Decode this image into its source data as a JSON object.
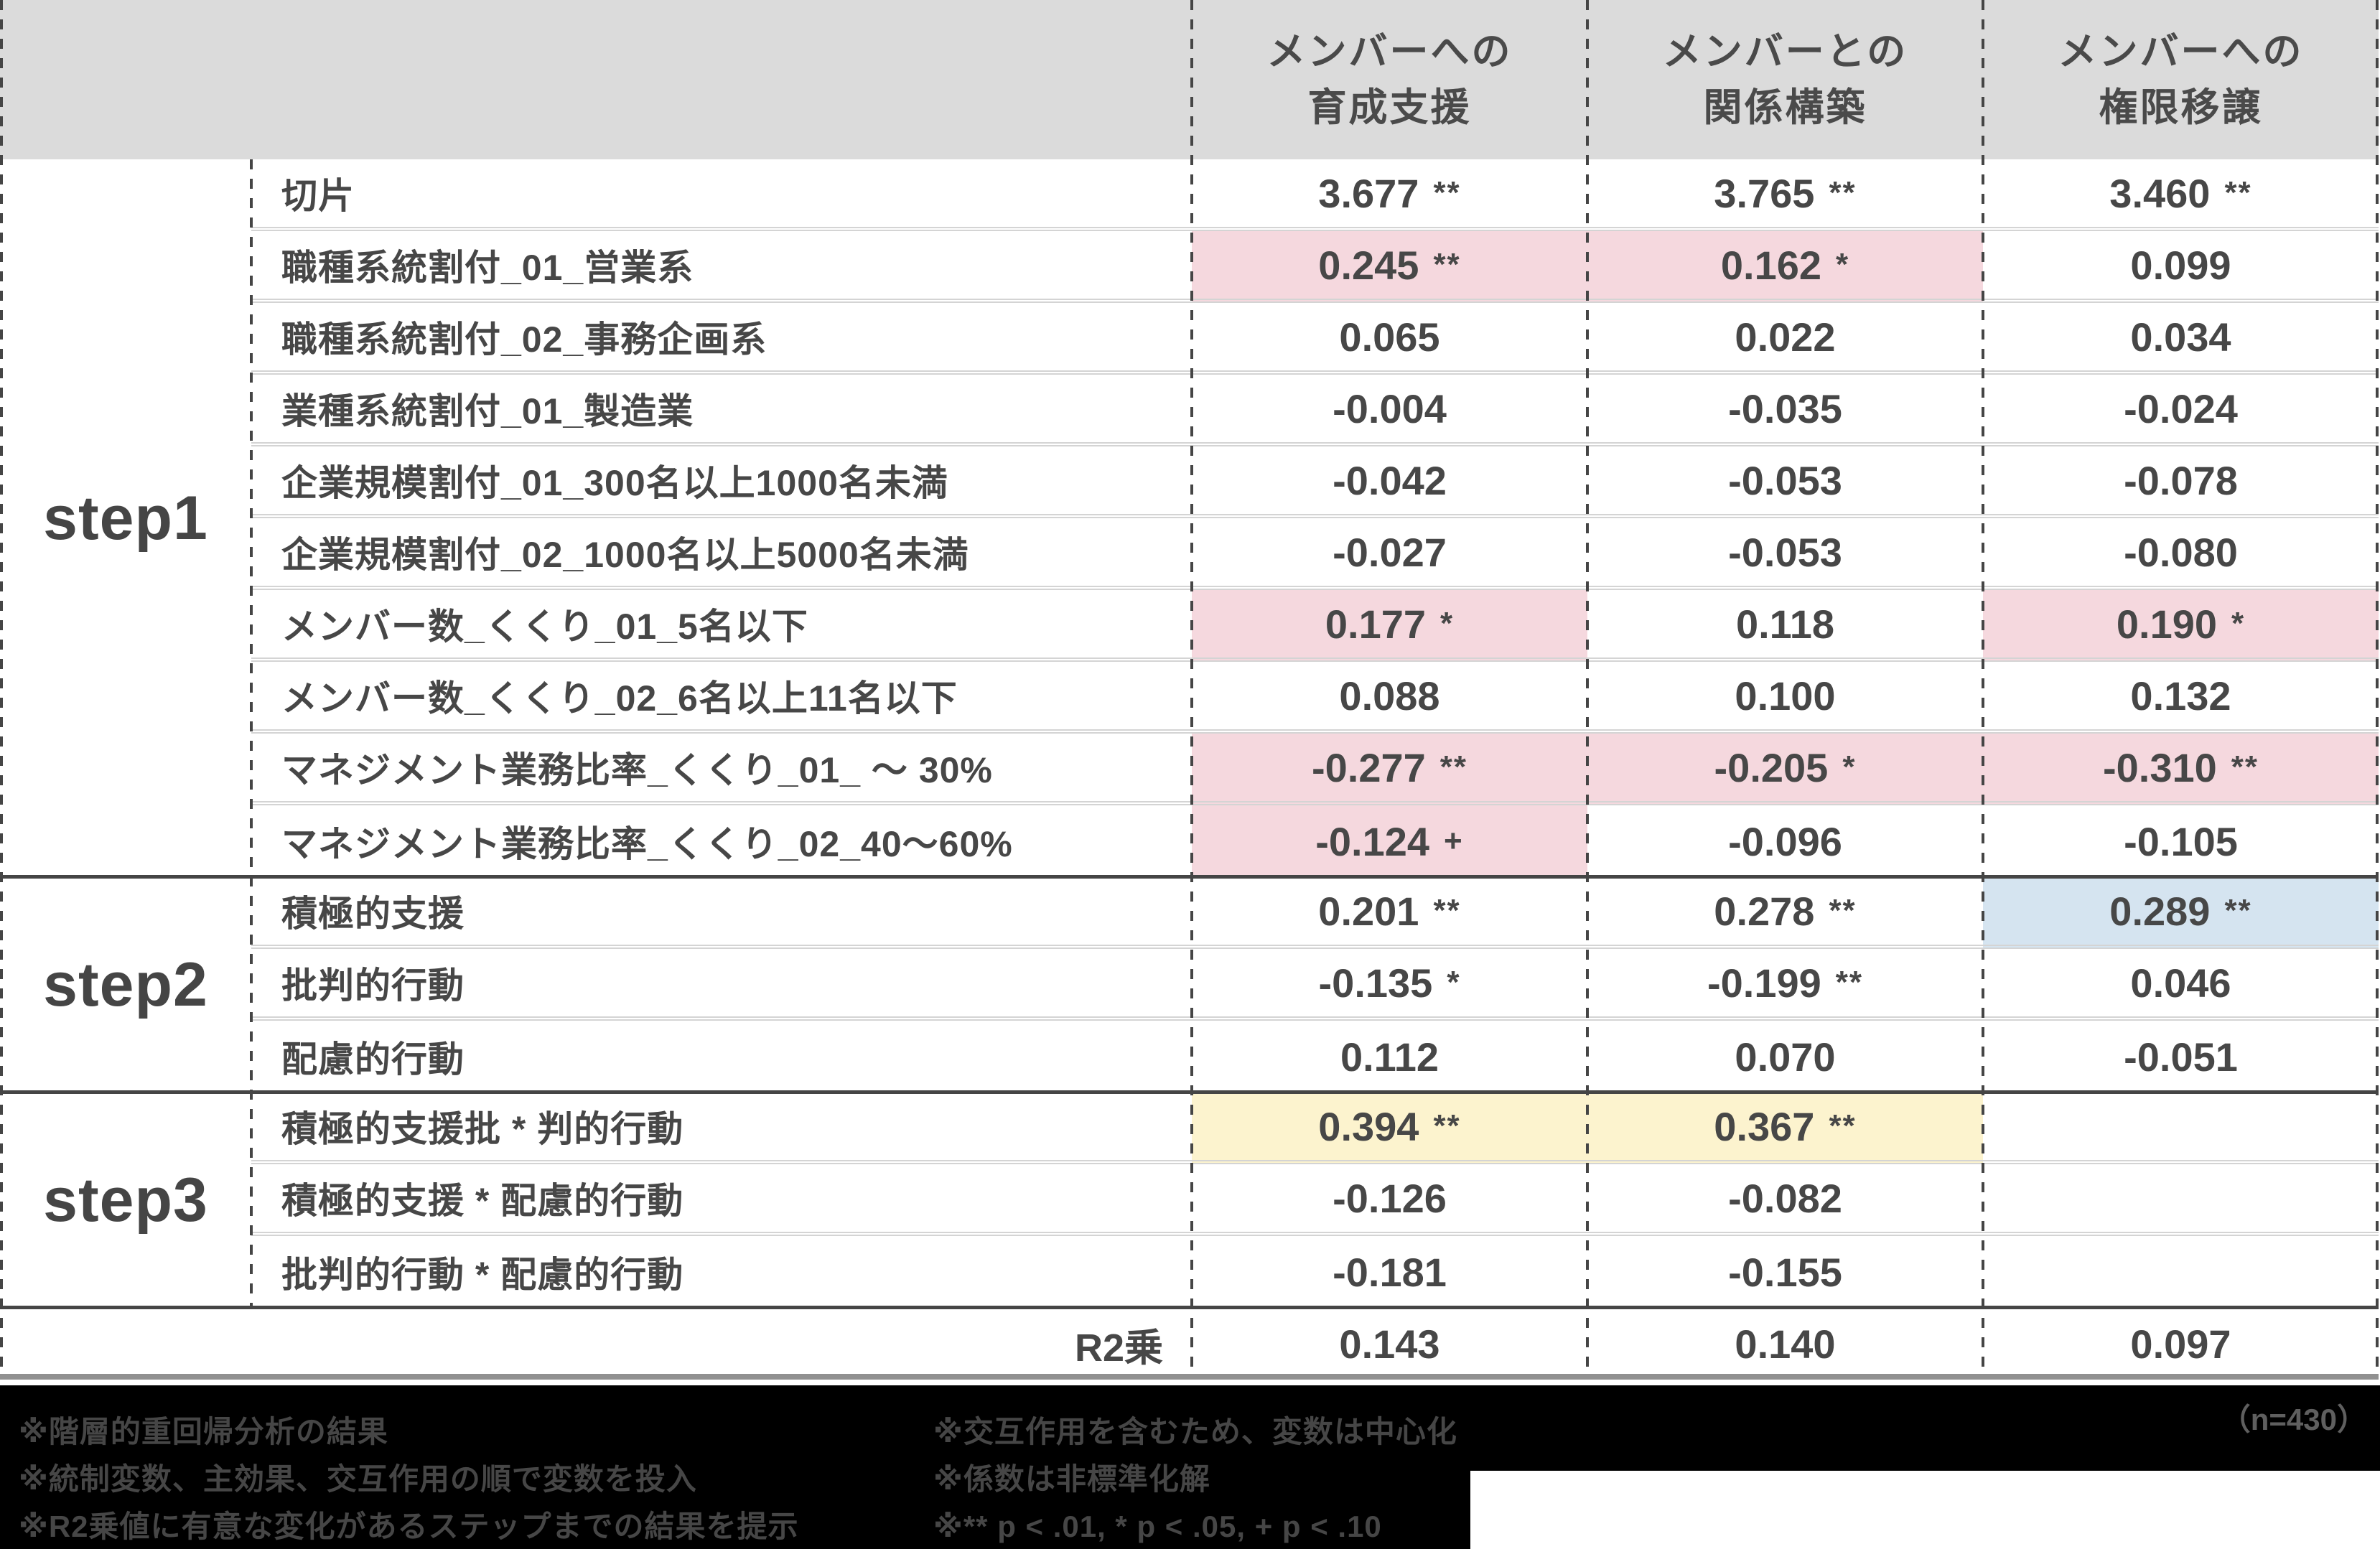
{
  "chart_data": {
    "type": "table",
    "col_headers": [
      "メンバーへの\n育成支援",
      "メンバーとの\n関係構築",
      "メンバーへの\n権限移譲"
    ],
    "sections": [
      {
        "step": "step1",
        "rows": [
          {
            "label": "切片",
            "cells": [
              {
                "v": "3.677",
                "sig": "**"
              },
              {
                "v": "3.765",
                "sig": "**"
              },
              {
                "v": "3.460",
                "sig": "**"
              }
            ]
          },
          {
            "label": "職種系統割付_01_営業系",
            "cells": [
              {
                "v": "0.245",
                "sig": "**",
                "hl": "pink"
              },
              {
                "v": "0.162",
                "sig": "*",
                "hl": "pink"
              },
              {
                "v": "0.099"
              }
            ]
          },
          {
            "label": "職種系統割付_02_事務企画系",
            "cells": [
              {
                "v": "0.065"
              },
              {
                "v": "0.022"
              },
              {
                "v": "0.034"
              }
            ]
          },
          {
            "label": "業種系統割付_01_製造業",
            "cells": [
              {
                "v": "-0.004"
              },
              {
                "v": "-0.035"
              },
              {
                "v": "-0.024"
              }
            ]
          },
          {
            "label": "企業規模割付_01_300名以上1000名未満",
            "cells": [
              {
                "v": "-0.042"
              },
              {
                "v": "-0.053"
              },
              {
                "v": "-0.078"
              }
            ]
          },
          {
            "label": "企業規模割付_02_1000名以上5000名未満",
            "cells": [
              {
                "v": "-0.027"
              },
              {
                "v": "-0.053"
              },
              {
                "v": "-0.080"
              }
            ]
          },
          {
            "label": "メンバー数_くくり_01_5名以下",
            "cells": [
              {
                "v": "0.177",
                "sig": "*",
                "hl": "pink"
              },
              {
                "v": "0.118"
              },
              {
                "v": "0.190",
                "sig": "*",
                "hl": "pink"
              }
            ]
          },
          {
            "label": "メンバー数_くくり_02_6名以上11名以下",
            "cells": [
              {
                "v": "0.088"
              },
              {
                "v": "0.100"
              },
              {
                "v": "0.132"
              }
            ]
          },
          {
            "label": "マネジメント業務比率_くくり_01_ ～ 30%",
            "cells": [
              {
                "v": "-0.277",
                "sig": "**",
                "hl": "pink"
              },
              {
                "v": "-0.205",
                "sig": "*",
                "hl": "pink"
              },
              {
                "v": "-0.310",
                "sig": "**",
                "hl": "pink"
              }
            ]
          },
          {
            "label": "マネジメント業務比率_くくり_02_40～60%",
            "cells": [
              {
                "v": "-0.124",
                "sig": "+",
                "hl": "pink"
              },
              {
                "v": "-0.096"
              },
              {
                "v": "-0.105"
              }
            ]
          }
        ]
      },
      {
        "step": "step2",
        "rows": [
          {
            "label": "積極的支援",
            "cells": [
              {
                "v": "0.201",
                "sig": "**"
              },
              {
                "v": "0.278",
                "sig": "**"
              },
              {
                "v": "0.289",
                "sig": "**",
                "hl": "blue"
              }
            ]
          },
          {
            "label": "批判的行動",
            "cells": [
              {
                "v": "-0.135",
                "sig": "*"
              },
              {
                "v": "-0.199",
                "sig": "**"
              },
              {
                "v": "0.046"
              }
            ]
          },
          {
            "label": "配慮的行動",
            "cells": [
              {
                "v": "0.112"
              },
              {
                "v": "0.070"
              },
              {
                "v": "-0.051"
              }
            ]
          }
        ]
      },
      {
        "step": "step3",
        "rows": [
          {
            "label": "積極的支援批 * 判的行動",
            "cells": [
              {
                "v": "0.394",
                "sig": "**",
                "hl": "yellow"
              },
              {
                "v": "0.367",
                "sig": "**",
                "hl": "yellow"
              },
              {
                "v": ""
              }
            ]
          },
          {
            "label": "積極的支援 * 配慮的行動",
            "cells": [
              {
                "v": "-0.126"
              },
              {
                "v": "-0.082"
              },
              {
                "v": ""
              }
            ]
          },
          {
            "label": "批判的行動 * 配慮的行動",
            "cells": [
              {
                "v": "-0.181"
              },
              {
                "v": "-0.155"
              },
              {
                "v": ""
              }
            ]
          }
        ]
      }
    ],
    "r2_row": {
      "label": "R2乗",
      "cells": [
        {
          "v": "0.143"
        },
        {
          "v": "0.140"
        },
        {
          "v": "0.097"
        }
      ]
    },
    "footnotes": {
      "left": [
        "※階層的重回帰分析の結果",
        "※統制変数、主効果、交互作用の順で変数を投入",
        "※R2乗値に有意な変化があるステップまでの結果を提示"
      ],
      "right": [
        "※交互作用を含むため、変数は中心化",
        "※係数は非標準化解",
        "※** p < .01, * p < .05, + p < .10"
      ],
      "n_label": "（n=430）"
    }
  },
  "colors": {
    "header_bg": "#dbdbdb",
    "pink": "#f5d8de",
    "blue": "#d5e4f0",
    "yellow": "#fcf3ce",
    "section_line": "#454545",
    "text": "#474747",
    "footer_bg": "#000000",
    "footer_text": "#464646",
    "n_label_text": "#5f5f5f"
  }
}
